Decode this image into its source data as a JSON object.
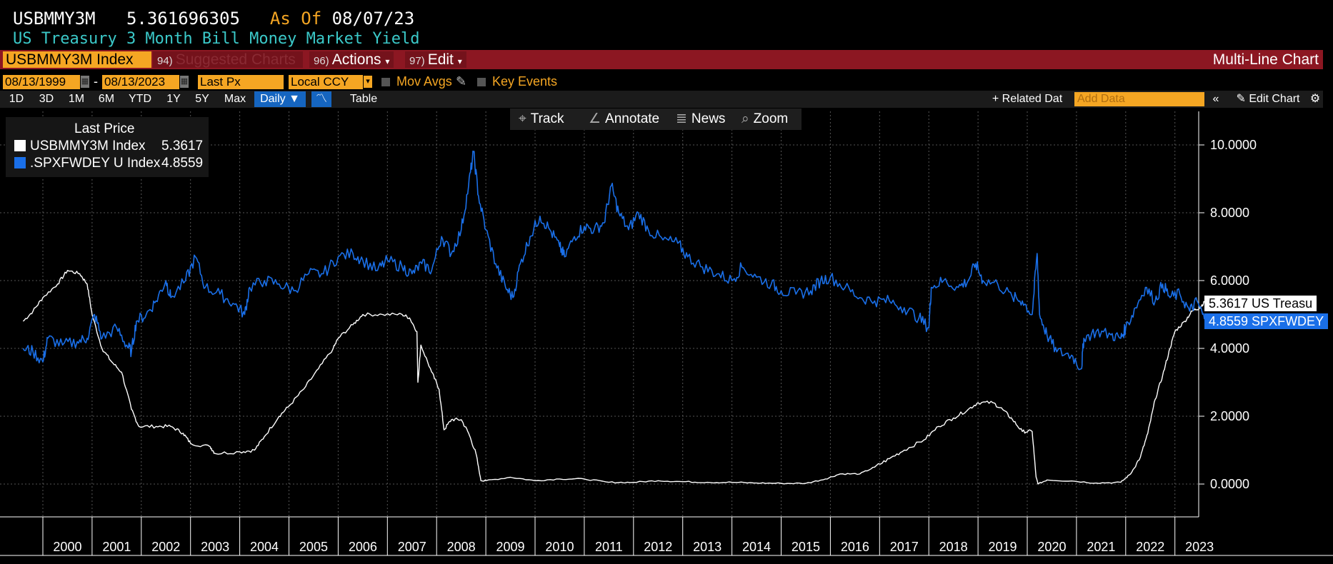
{
  "header": {
    "ticker": "USBMMY3M",
    "value": "5.361696305",
    "asof_label": "As Of",
    "asof_date": "08/07/23",
    "description": "US Treasury 3 Month Bill Money Market Yield"
  },
  "toolbar": {
    "security": "USBMMY3M Index",
    "suggested_num": "94)",
    "suggested_label": "Suggested Charts",
    "actions_num": "96)",
    "actions_label": "Actions",
    "edit_num": "97)",
    "edit_label": "Edit",
    "chart_type": "Multi-Line Chart"
  },
  "options": {
    "start_date": "08/13/1999",
    "end_date": "08/13/2023",
    "field": "Last Px",
    "currency": "Local CCY",
    "mov_avgs": "Mov Avgs",
    "key_events": "Key Events"
  },
  "ranges": {
    "items": [
      "1D",
      "3D",
      "1M",
      "6M",
      "YTD",
      "1Y",
      "5Y",
      "Max"
    ],
    "frequency": "Daily",
    "table": "Table",
    "related": "Related Dat",
    "add_data_placeholder": "Add Data",
    "edit_chart": "Edit Chart"
  },
  "chart_tools": {
    "track": "Track",
    "annotate": "Annotate",
    "news": "News",
    "zoom": "Zoom"
  },
  "legend": {
    "title": "Last Price",
    "entries": [
      {
        "name": "USBMMY3M Index",
        "value": "5.3617",
        "color": "#ffffff"
      },
      {
        "name": ".SPXFWDEY U Index",
        "value": "4.8559",
        "color": "#1a6fe8"
      }
    ]
  },
  "flags": {
    "treasury": "5.3617 US Treasu",
    "spx": "4.8559 SPXFWDEY"
  },
  "chart_data": {
    "type": "line",
    "ylim": [
      -1,
      11
    ],
    "yticks": [
      "10.0000",
      "8.0000",
      "6.0000",
      "4.0000",
      "2.0000",
      "0.0000"
    ],
    "xlabels": [
      "2000",
      "2001",
      "2002",
      "2003",
      "2004",
      "2005",
      "2006",
      "2007",
      "2008",
      "2009",
      "2010",
      "2011",
      "2012",
      "2013",
      "2014",
      "2015",
      "2016",
      "2017",
      "2018",
      "2019",
      "2020",
      "2021",
      "2022",
      "2023"
    ],
    "x_range": [
      1999.6,
      2023.75
    ],
    "grid": true,
    "legend_position": "top-left",
    "series": [
      {
        "name": "USBMMY3M Index",
        "color": "#ffffff",
        "points": [
          [
            1999.6,
            4.8
          ],
          [
            1999.8,
            5.1
          ],
          [
            2000.0,
            5.5
          ],
          [
            2000.3,
            5.9
          ],
          [
            2000.5,
            6.3
          ],
          [
            2000.75,
            6.2
          ],
          [
            2000.9,
            5.9
          ],
          [
            2001.0,
            5.0
          ],
          [
            2001.2,
            4.0
          ],
          [
            2001.4,
            3.6
          ],
          [
            2001.6,
            3.3
          ],
          [
            2001.8,
            2.2
          ],
          [
            2001.95,
            1.7
          ],
          [
            2002.3,
            1.7
          ],
          [
            2002.6,
            1.7
          ],
          [
            2002.85,
            1.5
          ],
          [
            2003.0,
            1.2
          ],
          [
            2003.4,
            1.1
          ],
          [
            2003.5,
            0.9
          ],
          [
            2004.0,
            0.95
          ],
          [
            2004.3,
            1.0
          ],
          [
            2004.5,
            1.4
          ],
          [
            2004.8,
            2.0
          ],
          [
            2005.0,
            2.3
          ],
          [
            2005.3,
            2.8
          ],
          [
            2005.6,
            3.4
          ],
          [
            2005.9,
            4.0
          ],
          [
            2006.0,
            4.3
          ],
          [
            2006.3,
            4.7
          ],
          [
            2006.5,
            5.0
          ],
          [
            2006.9,
            5.0
          ],
          [
            2007.3,
            5.0
          ],
          [
            2007.45,
            4.9
          ],
          [
            2007.6,
            4.5
          ],
          [
            2007.62,
            3.0
          ],
          [
            2007.68,
            4.1
          ],
          [
            2007.9,
            3.3
          ],
          [
            2008.05,
            2.8
          ],
          [
            2008.15,
            1.6
          ],
          [
            2008.3,
            1.9
          ],
          [
            2008.5,
            1.9
          ],
          [
            2008.65,
            1.5
          ],
          [
            2008.8,
            0.9
          ],
          [
            2008.9,
            0.1
          ],
          [
            2009.0,
            0.1
          ],
          [
            2009.5,
            0.2
          ],
          [
            2010.0,
            0.1
          ],
          [
            2010.5,
            0.15
          ],
          [
            2011.0,
            0.15
          ],
          [
            2011.5,
            0.05
          ],
          [
            2012.0,
            0.05
          ],
          [
            2012.5,
            0.1
          ],
          [
            2013.0,
            0.07
          ],
          [
            2013.5,
            0.05
          ],
          [
            2014.0,
            0.05
          ],
          [
            2014.5,
            0.03
          ],
          [
            2015.0,
            0.02
          ],
          [
            2015.5,
            0.02
          ],
          [
            2015.9,
            0.15
          ],
          [
            2016.2,
            0.3
          ],
          [
            2016.6,
            0.3
          ],
          [
            2016.9,
            0.5
          ],
          [
            2017.2,
            0.75
          ],
          [
            2017.5,
            1.0
          ],
          [
            2017.9,
            1.3
          ],
          [
            2018.2,
            1.7
          ],
          [
            2018.5,
            1.95
          ],
          [
            2018.8,
            2.2
          ],
          [
            2019.0,
            2.4
          ],
          [
            2019.3,
            2.4
          ],
          [
            2019.5,
            2.2
          ],
          [
            2019.7,
            1.9
          ],
          [
            2019.9,
            1.55
          ],
          [
            2020.1,
            1.55
          ],
          [
            2020.18,
            0.2
          ],
          [
            2020.22,
            0.0
          ],
          [
            2020.4,
            0.12
          ],
          [
            2020.9,
            0.09
          ],
          [
            2021.4,
            0.03
          ],
          [
            2021.9,
            0.05
          ],
          [
            2022.1,
            0.3
          ],
          [
            2022.3,
            0.8
          ],
          [
            2022.45,
            1.5
          ],
          [
            2022.6,
            2.5
          ],
          [
            2022.75,
            3.2
          ],
          [
            2022.9,
            4.0
          ],
          [
            2023.0,
            4.5
          ],
          [
            2023.2,
            4.8
          ],
          [
            2023.35,
            5.1
          ],
          [
            2023.5,
            5.2
          ],
          [
            2023.6,
            5.36
          ]
        ]
      },
      {
        "name": ".SPXFWDEY U Index",
        "color": "#1a6fe8",
        "points": [
          [
            1999.6,
            4.0
          ],
          [
            1999.8,
            3.9
          ],
          [
            2000.0,
            3.6
          ],
          [
            2000.1,
            4.3
          ],
          [
            2000.4,
            4.1
          ],
          [
            2000.7,
            4.2
          ],
          [
            2000.9,
            4.3
          ],
          [
            2001.05,
            5.0
          ],
          [
            2001.2,
            4.3
          ],
          [
            2001.5,
            4.6
          ],
          [
            2001.7,
            4.1
          ],
          [
            2001.8,
            3.9
          ],
          [
            2001.9,
            4.8
          ],
          [
            2002.1,
            5.0
          ],
          [
            2002.3,
            5.4
          ],
          [
            2002.5,
            6.0
          ],
          [
            2002.6,
            5.5
          ],
          [
            2002.9,
            6.0
          ],
          [
            2003.1,
            6.7
          ],
          [
            2003.3,
            5.8
          ],
          [
            2003.6,
            5.6
          ],
          [
            2003.9,
            5.3
          ],
          [
            2004.1,
            5.0
          ],
          [
            2004.2,
            5.8
          ],
          [
            2004.5,
            6.0
          ],
          [
            2004.8,
            5.9
          ],
          [
            2005.1,
            5.7
          ],
          [
            2005.4,
            6.2
          ],
          [
            2005.7,
            6.2
          ],
          [
            2006.0,
            6.7
          ],
          [
            2006.3,
            6.8
          ],
          [
            2006.5,
            6.6
          ],
          [
            2006.8,
            6.3
          ],
          [
            2007.0,
            6.6
          ],
          [
            2007.3,
            6.4
          ],
          [
            2007.5,
            6.2
          ],
          [
            2007.7,
            6.5
          ],
          [
            2007.9,
            6.3
          ],
          [
            2008.1,
            7.3
          ],
          [
            2008.3,
            6.8
          ],
          [
            2008.5,
            7.5
          ],
          [
            2008.65,
            8.8
          ],
          [
            2008.75,
            9.8
          ],
          [
            2008.85,
            8.5
          ],
          [
            2009.0,
            7.5
          ],
          [
            2009.2,
            6.5
          ],
          [
            2009.4,
            5.8
          ],
          [
            2009.55,
            5.5
          ],
          [
            2009.7,
            6.5
          ],
          [
            2009.9,
            7.3
          ],
          [
            2010.1,
            7.9
          ],
          [
            2010.3,
            7.5
          ],
          [
            2010.5,
            7.0
          ],
          [
            2010.6,
            6.7
          ],
          [
            2010.8,
            7.3
          ],
          [
            2011.0,
            7.6
          ],
          [
            2011.2,
            7.5
          ],
          [
            2011.4,
            7.7
          ],
          [
            2011.55,
            8.8
          ],
          [
            2011.7,
            8.0
          ],
          [
            2011.9,
            7.5
          ],
          [
            2012.1,
            8.0
          ],
          [
            2012.3,
            7.5
          ],
          [
            2012.6,
            7.2
          ],
          [
            2012.9,
            7.1
          ],
          [
            2013.1,
            6.7
          ],
          [
            2013.4,
            6.4
          ],
          [
            2013.7,
            6.2
          ],
          [
            2014.0,
            6.0
          ],
          [
            2014.2,
            6.4
          ],
          [
            2014.5,
            6.1
          ],
          [
            2014.8,
            5.9
          ],
          [
            2015.0,
            5.7
          ],
          [
            2015.3,
            5.6
          ],
          [
            2015.6,
            5.7
          ],
          [
            2015.8,
            6.0
          ],
          [
            2016.0,
            6.1
          ],
          [
            2016.3,
            5.8
          ],
          [
            2016.6,
            5.5
          ],
          [
            2016.9,
            5.4
          ],
          [
            2017.2,
            5.4
          ],
          [
            2017.5,
            5.2
          ],
          [
            2017.8,
            4.9
          ],
          [
            2018.0,
            4.6
          ],
          [
            2018.05,
            5.8
          ],
          [
            2018.3,
            6.0
          ],
          [
            2018.6,
            5.8
          ],
          [
            2018.8,
            6.0
          ],
          [
            2018.95,
            6.5
          ],
          [
            2019.1,
            6.0
          ],
          [
            2019.4,
            5.9
          ],
          [
            2019.7,
            5.5
          ],
          [
            2019.9,
            5.4
          ],
          [
            2020.1,
            5.0
          ],
          [
            2020.2,
            6.8
          ],
          [
            2020.25,
            5.0
          ],
          [
            2020.4,
            4.4
          ],
          [
            2020.6,
            3.9
          ],
          [
            2020.9,
            3.8
          ],
          [
            2021.1,
            3.4
          ],
          [
            2021.15,
            4.3
          ],
          [
            2021.4,
            4.5
          ],
          [
            2021.7,
            4.4
          ],
          [
            2021.9,
            4.3
          ],
          [
            2022.0,
            4.6
          ],
          [
            2022.2,
            5.2
          ],
          [
            2022.4,
            5.8
          ],
          [
            2022.6,
            5.4
          ],
          [
            2022.75,
            5.9
          ],
          [
            2022.9,
            5.5
          ],
          [
            2023.1,
            5.6
          ],
          [
            2023.3,
            5.1
          ],
          [
            2023.45,
            5.4
          ],
          [
            2023.6,
            4.86
          ]
        ]
      }
    ]
  }
}
